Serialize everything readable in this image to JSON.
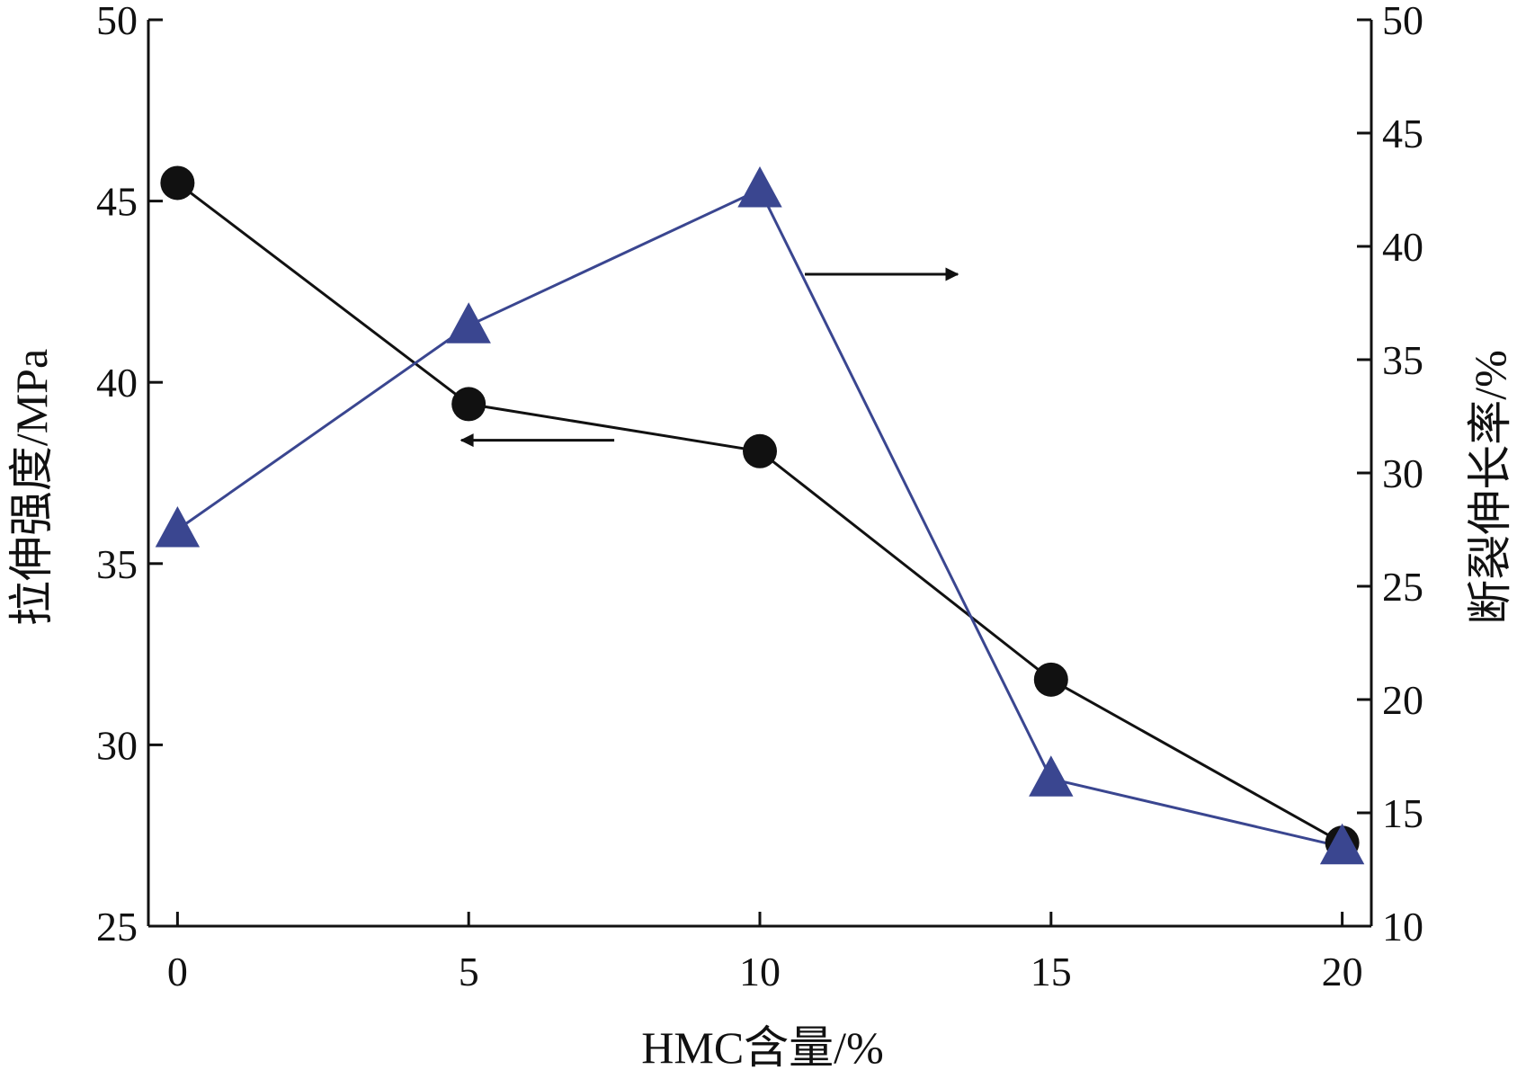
{
  "chart_data": {
    "type": "line",
    "x": [
      0,
      5,
      10,
      15,
      20
    ],
    "x_ticks": [
      "0",
      "5",
      "10",
      "15",
      "20"
    ],
    "xlim": [
      -0.5,
      20.5
    ],
    "xlabel": "HMC含量/%",
    "ylabel_left": "拉伸强度/MPa",
    "ylabel_right": "断裂伸长率/%",
    "ylim_left": [
      25,
      50
    ],
    "ylim_right": [
      10,
      50
    ],
    "yticks_left": [
      25,
      30,
      35,
      40,
      45,
      50
    ],
    "yticks_right": [
      10,
      15,
      20,
      25,
      30,
      35,
      40,
      45,
      50
    ],
    "grid": false,
    "series": [
      {
        "axis": "left",
        "marker": "circle",
        "color": "#111111",
        "values": [
          45.5,
          39.4,
          38.1,
          31.8,
          27.3
        ]
      },
      {
        "axis": "right",
        "marker": "triangle",
        "color": "#3a4690",
        "values": [
          27.5,
          36.5,
          42.5,
          16.5,
          13.5
        ]
      }
    ],
    "annotations": [
      {
        "type": "arrow",
        "direction": "left",
        "points_to_axis": "left",
        "series_index": 0
      },
      {
        "type": "arrow",
        "direction": "right",
        "points_to_axis": "right",
        "series_index": 1
      }
    ]
  }
}
